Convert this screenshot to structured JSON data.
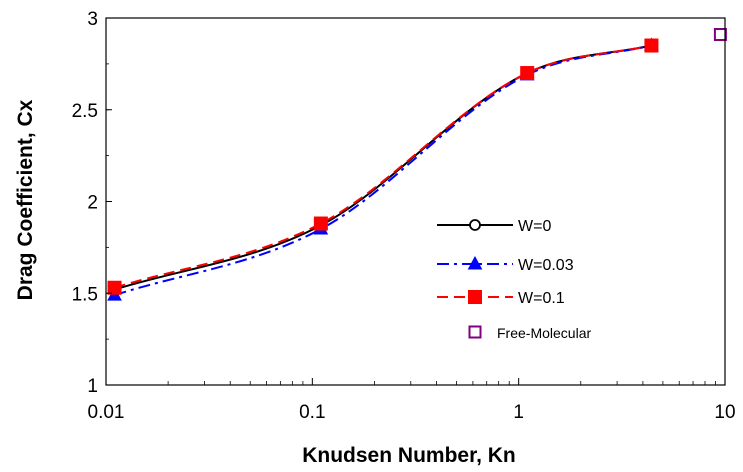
{
  "chart_data": {
    "type": "line",
    "title": "",
    "xlabel": "Knudsen Number, Kn",
    "ylabel": "Drag Coefficient, Cx",
    "xscale": "log",
    "xlim": [
      0.01,
      10
    ],
    "ylim": [
      1,
      3
    ],
    "x_ticks": [
      "0.01",
      "0.1",
      "1",
      "10"
    ],
    "y_ticks": [
      "1",
      "1.5",
      "2",
      "2.5",
      "3"
    ],
    "grid": false,
    "legend_position": "center-right",
    "series": [
      {
        "name": "W=0",
        "color": "#000000",
        "line_style": "solid",
        "marker": "open-circle",
        "x": [
          0.011,
          0.11,
          1.1,
          4.4
        ],
        "y": [
          1.52,
          1.87,
          2.7,
          2.85
        ]
      },
      {
        "name": "W=0.03",
        "color": "#0000ff",
        "line_style": "dash-dot",
        "marker": "filled-triangle",
        "x": [
          0.011,
          0.11,
          1.1,
          4.4
        ],
        "y": [
          1.49,
          1.85,
          2.69,
          2.85
        ]
      },
      {
        "name": "W=0.1",
        "color": "#ff0000",
        "line_style": "dashed",
        "marker": "filled-square",
        "x": [
          0.011,
          0.11,
          1.1,
          4.4
        ],
        "y": [
          1.53,
          1.88,
          2.7,
          2.85
        ]
      },
      {
        "name": "Free-Molecular",
        "color": "#800080",
        "line_style": "none",
        "marker": "open-square",
        "x": [
          9.5
        ],
        "y": [
          2.91
        ]
      }
    ]
  }
}
